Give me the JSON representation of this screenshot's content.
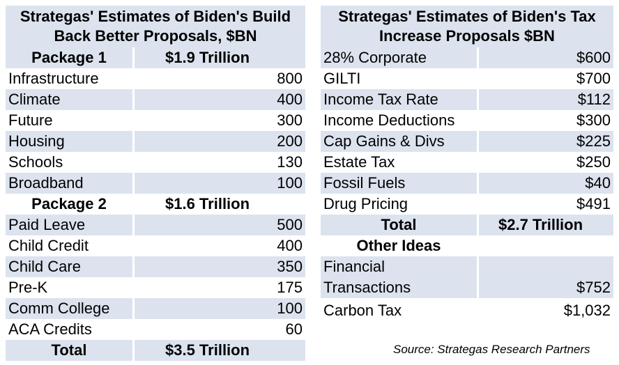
{
  "left_table": {
    "title": "Strategas' Estimates of Biden's Build Back Better Proposals, $BN",
    "package1": {
      "label": "Package 1",
      "amount": "$1.9 Trillion"
    },
    "package1_rows": [
      {
        "name": "Infrastructure",
        "value": "800"
      },
      {
        "name": "Climate",
        "value": "400"
      },
      {
        "name": "Future",
        "value": "300"
      },
      {
        "name": "Housing",
        "value": "200"
      },
      {
        "name": "Schools",
        "value": "130"
      },
      {
        "name": "Broadband",
        "value": "100"
      }
    ],
    "package2": {
      "label": "Package 2",
      "amount": "$1.6 Trillion"
    },
    "package2_rows": [
      {
        "name": "Paid Leave",
        "value": "500"
      },
      {
        "name": "Child Credit",
        "value": "400"
      },
      {
        "name": "Child Care",
        "value": "350"
      },
      {
        "name": "Pre-K",
        "value": "175"
      },
      {
        "name": "Comm College",
        "value": "100"
      },
      {
        "name": "ACA Credits",
        "value": "60"
      }
    ],
    "total": {
      "label": "Total",
      "amount": "$3.5 Trillion"
    }
  },
  "right_table": {
    "title": "Strategas' Estimates of Biden's Tax Increase Proposals $BN",
    "rows": [
      {
        "name": "28% Corporate",
        "value": "$600"
      },
      {
        "name": "GILTI",
        "value": "$700"
      },
      {
        "name": "Income Tax Rate",
        "value": "$112"
      },
      {
        "name": "Income Deductions",
        "value": "$300"
      },
      {
        "name": "Cap Gains & Divs",
        "value": "$225"
      },
      {
        "name": "Estate Tax",
        "value": "$250"
      },
      {
        "name": "Fossil Fuels",
        "value": "$40"
      },
      {
        "name": "Drug Pricing",
        "value": "$491"
      }
    ],
    "total": {
      "label": "Total",
      "amount": "$2.7 Trillion"
    },
    "other_ideas": {
      "label": "Other Ideas"
    },
    "financial": {
      "line1": "Financial",
      "line2": "Transactions",
      "value": "$752"
    },
    "carbon": {
      "name": "Carbon Tax",
      "value": "$1,032"
    }
  },
  "source": "Source: Strategas Research Partners"
}
